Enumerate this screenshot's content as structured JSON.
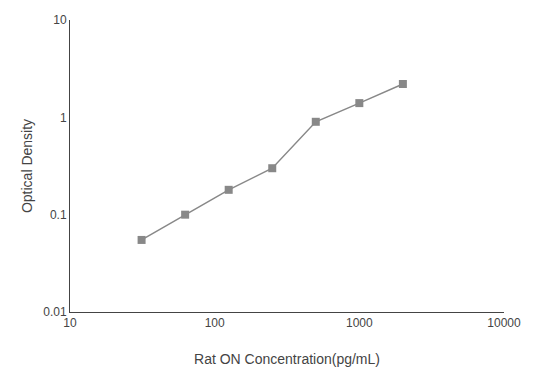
{
  "chart_data": {
    "type": "line",
    "x": [
      31.25,
      62.5,
      125,
      250,
      500,
      1000,
      2000
    ],
    "values": [
      0.055,
      0.1,
      0.18,
      0.3,
      0.9,
      1.4,
      2.2
    ],
    "xlabel": "Rat ON Concentration(pg/mL)",
    "ylabel": "Optical Density",
    "xlim": [
      10,
      10000
    ],
    "ylim": [
      0.01,
      10
    ],
    "xticks": [
      10,
      100,
      1000,
      10000
    ],
    "yticks": [
      0.01,
      0.1,
      1,
      10
    ],
    "log": true,
    "grid": false,
    "color": "#888888",
    "marker": "square",
    "line_style": "solid"
  }
}
